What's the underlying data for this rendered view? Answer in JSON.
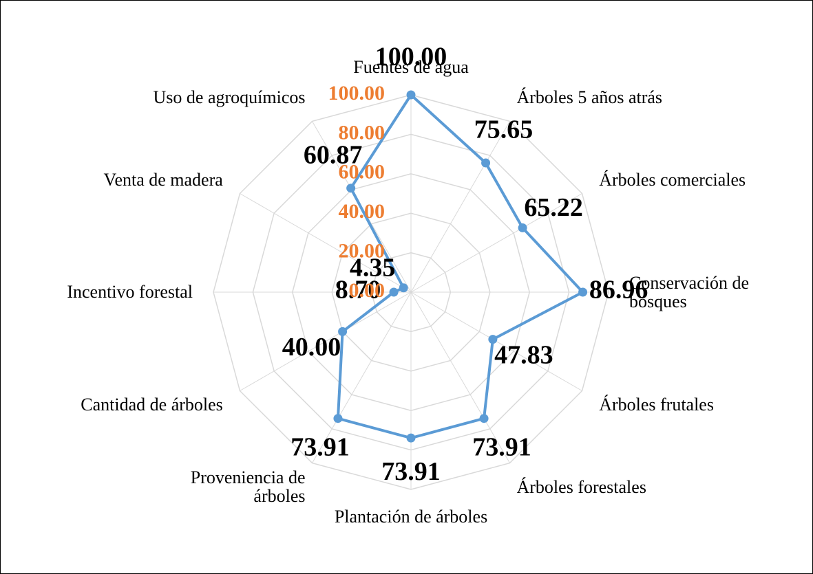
{
  "chart_data": {
    "type": "radar",
    "categories": [
      "Fuentes de agua",
      "Árboles 5 años atrás",
      "Árboles comerciales",
      "Conservación de bosques",
      "Árboles frutales",
      "Árboles forestales",
      "Plantación de árboles",
      "Proveniencia de árboles",
      "Cantidad de árboles",
      "Incentivo forestal",
      "Venta de madera",
      "Uso de agroquímicos"
    ],
    "series": [
      {
        "color": "#5b9bd5",
        "values": [
          100,
          75.65,
          65.22,
          86.96,
          47.83,
          73.91,
          73.91,
          73.91,
          40,
          8.7,
          4.35,
          60.87
        ],
        "value_labels": [
          "100.00",
          "75.65",
          "65.22",
          "86.96",
          "47.83",
          "73.91",
          "73.91",
          "73.91",
          "40.00",
          "8.70",
          "4.35",
          "60.87"
        ]
      }
    ],
    "ylim": [
      0,
      100
    ],
    "yticks": [
      {
        "value": 0,
        "label": "0.00"
      },
      {
        "value": 20,
        "label": "20.00"
      },
      {
        "value": 40,
        "label": "40.00"
      },
      {
        "value": 60,
        "label": "60.00"
      },
      {
        "value": 80,
        "label": "80.00"
      },
      {
        "value": 100,
        "label": "100.00"
      }
    ],
    "tick_color": "#ed7d31",
    "grid": true
  }
}
